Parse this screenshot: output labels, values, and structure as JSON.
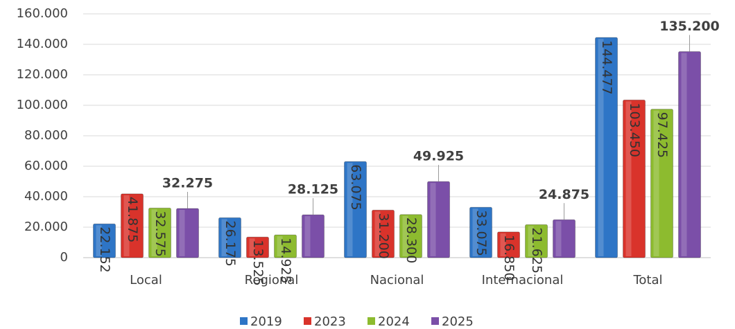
{
  "chart_data": {
    "type": "bar",
    "categories": [
      "Local",
      "Regional",
      "Nacional",
      "Internacional",
      "Total"
    ],
    "series": [
      {
        "name": "2019",
        "color": "#2e75c6",
        "values": [
          22152,
          26175,
          63075,
          33075,
          144477
        ],
        "value_labels": [
          "22.152",
          "26.175",
          "63.075",
          "33.075",
          "144.477"
        ]
      },
      {
        "name": "2023",
        "color": "#d9332b",
        "values": [
          41875,
          13525,
          31200,
          16850,
          103450
        ],
        "value_labels": [
          "41.875",
          "13.525",
          "31.200",
          "16.850",
          "103.450"
        ]
      },
      {
        "name": "2024",
        "color": "#8dbb2f",
        "values": [
          32575,
          14925,
          28300,
          21625,
          97425
        ],
        "value_labels": [
          "32.575",
          "14.925",
          "28.300",
          "21.625",
          "97.425"
        ]
      },
      {
        "name": "2025",
        "color": "#7b4fa8",
        "values": [
          32275,
          28125,
          49925,
          24875,
          135200
        ],
        "value_labels": [
          "32.275",
          "28.125",
          "49.925",
          "24.875",
          "135.200"
        ]
      }
    ],
    "ylim": [
      0,
      160000
    ],
    "yticks": [
      0,
      {
        "value": 20000,
        "label": "20.000"
      },
      {
        "value": 40000,
        "label": "40.000"
      },
      {
        "value": 60000,
        "label": "60.000"
      },
      {
        "value": 80000,
        "label": "80.000"
      },
      {
        "value": 100000,
        "label": "100.000"
      },
      {
        "value": 120000,
        "label": "120.000"
      },
      {
        "value": 140000,
        "label": "140.000"
      },
      {
        "value": 160000,
        "label": "160.000"
      }
    ],
    "grid": true,
    "legend": "bottom"
  }
}
